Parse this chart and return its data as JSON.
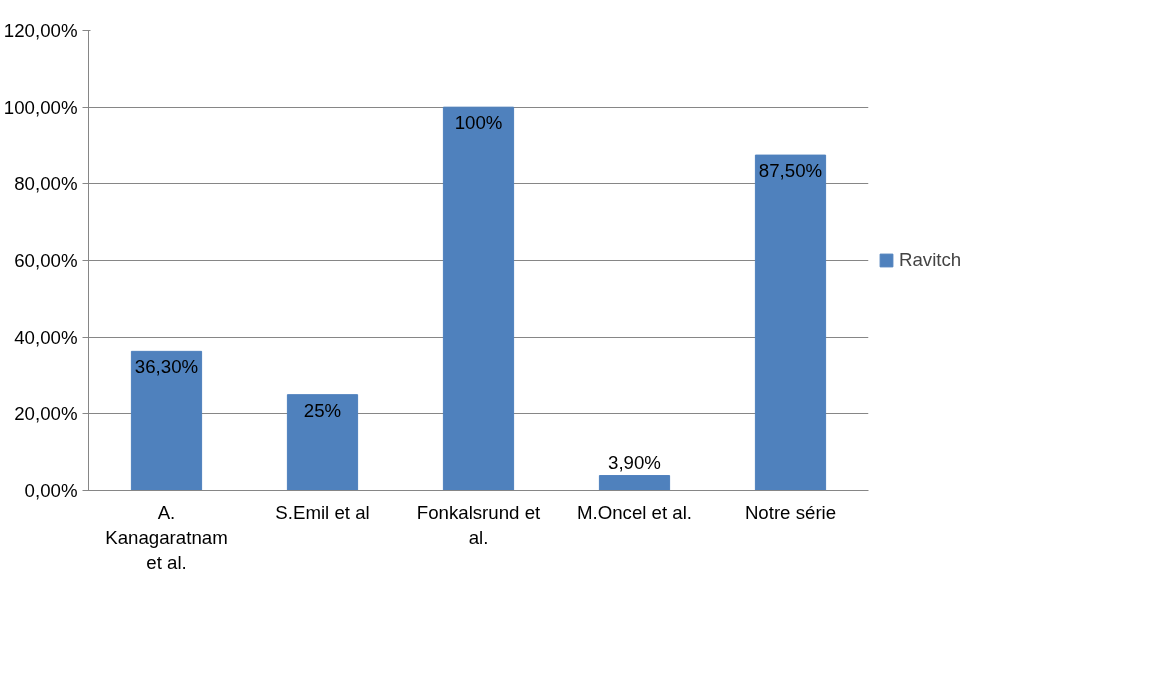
{
  "chart_data": {
    "type": "bar",
    "categories": [
      "A. Kanagaratnam et al.",
      "S.Emil et al",
      "Fonkalsrund et al.",
      "M.Oncel et al.",
      "Notre série"
    ],
    "series": [
      {
        "name": "Ravitch",
        "color": "#4f81bd",
        "values": [
          36.3,
          25,
          100,
          3.9,
          87.5
        ],
        "value_labels": [
          "36,30%",
          "25%",
          "100%",
          "3,90%",
          "87,50%"
        ]
      }
    ],
    "ylim": [
      0,
      120
    ],
    "yticks": [
      {
        "value": 0,
        "label": "0,00%"
      },
      {
        "value": 20,
        "label": "20,00%"
      },
      {
        "value": 40,
        "label": "40,00%"
      },
      {
        "value": 60,
        "label": "60,00%"
      },
      {
        "value": 80,
        "label": "80,00%"
      },
      {
        "value": 100,
        "label": "100,00%"
      },
      {
        "value": 120,
        "label": "120,00%"
      }
    ],
    "grid": "y",
    "legend": "right"
  }
}
